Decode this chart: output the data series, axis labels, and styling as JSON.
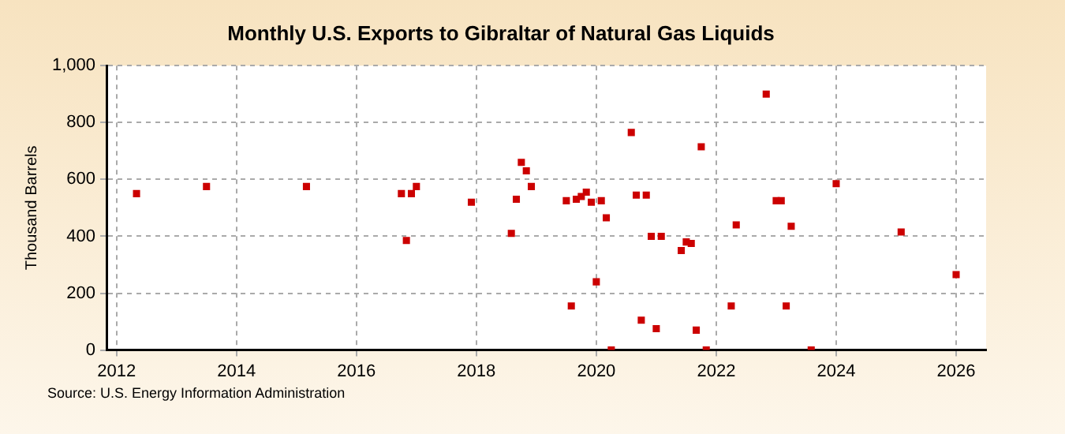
{
  "chart_data": {
    "type": "scatter",
    "title": "Monthly U.S. Exports to Gibraltar of Natural Gas Liquids",
    "ylabel": "Thousand Barrels",
    "x": [
      "2012-05",
      "2013-07",
      "2015-03",
      "2016-10",
      "2016-11",
      "2016-12",
      "2017-01",
      "2017-12",
      "2018-08",
      "2018-09",
      "2018-10",
      "2018-11",
      "2018-12",
      "2019-07",
      "2019-08",
      "2019-09",
      "2019-10",
      "2019-11",
      "2019-12",
      "2020-01",
      "2020-02",
      "2020-03",
      "2020-04",
      "2020-08",
      "2020-09",
      "2020-10",
      "2020-11",
      "2020-12",
      "2021-01",
      "2021-02",
      "2021-06",
      "2021-07",
      "2021-08",
      "2021-09",
      "2021-10",
      "2021-11",
      "2022-04",
      "2022-05",
      "2022-11",
      "2023-01",
      "2023-02",
      "2023-03",
      "2023-04",
      "2023-08",
      "2024-01",
      "2025-02",
      "2026-01"
    ],
    "series": [
      {
        "color": "#cc0000",
        "values": [
          550,
          575,
          575,
          550,
          385,
          550,
          575,
          520,
          410,
          530,
          660,
          630,
          575,
          525,
          155,
          530,
          540,
          555,
          520,
          240,
          525,
          465,
          0,
          765,
          545,
          105,
          545,
          400,
          75,
          400,
          350,
          380,
          375,
          70,
          715,
          0,
          155,
          440,
          900,
          525,
          525,
          155,
          435,
          0,
          585,
          415,
          265
        ]
      }
    ],
    "xlim": [
      "2011-11",
      "2026-07"
    ],
    "xticks": [
      "2012",
      "2014",
      "2016",
      "2018",
      "2020",
      "2022",
      "2024",
      "2026"
    ],
    "ylim": [
      0,
      1000
    ],
    "yticks": [
      0,
      200,
      400,
      600,
      800,
      {
        "value": 1000,
        "label": "1,000"
      }
    ],
    "grid": true,
    "legend": false,
    "marker": "square",
    "annotations": [
      "Source: U.S. Energy Information Administration"
    ]
  }
}
